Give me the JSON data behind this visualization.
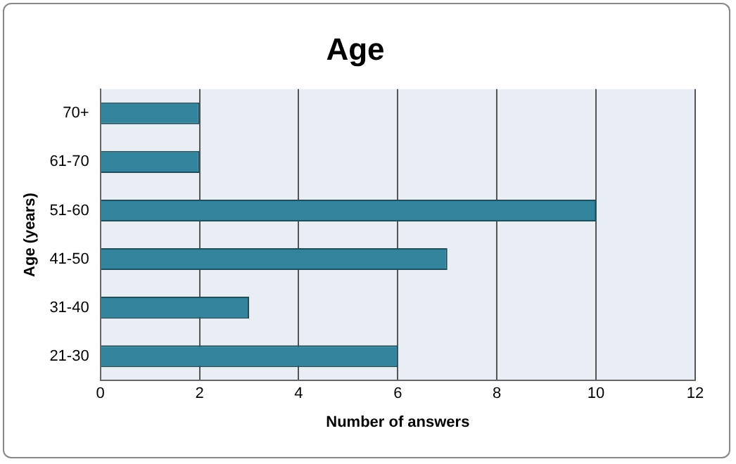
{
  "chart_data": {
    "type": "bar",
    "orientation": "horizontal",
    "title": "Age",
    "xlabel": "Number of answers",
    "ylabel": "Age (years)",
    "categories": [
      "70+",
      "61-70",
      "51-60",
      "41-50",
      "31-40",
      "21-30"
    ],
    "values": [
      2,
      2,
      10,
      7,
      3,
      6
    ],
    "color": "#31849b",
    "xlim": [
      0,
      12
    ],
    "xticks": [
      0,
      2,
      4,
      6,
      8,
      10,
      12
    ],
    "grid": "x"
  }
}
